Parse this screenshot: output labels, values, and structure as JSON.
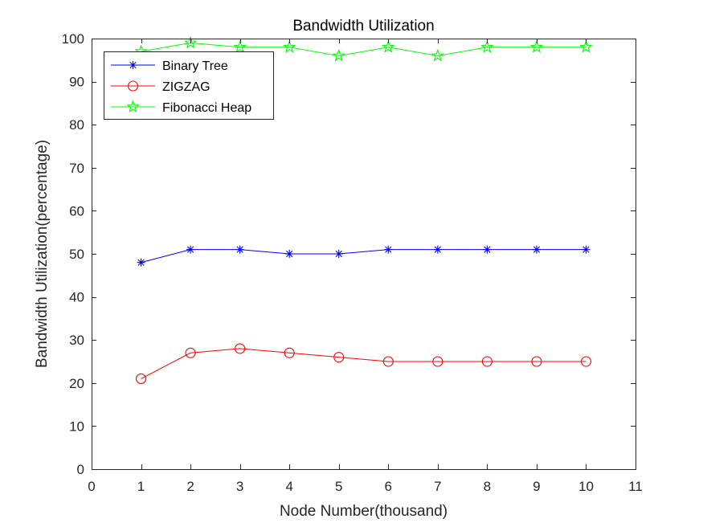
{
  "chart_data": {
    "type": "line",
    "title": "Bandwidth Utilization",
    "xlabel": "Node Number(thousand)",
    "ylabel": "Bandwidth Utilization(percentage)",
    "xlim": [
      0,
      11
    ],
    "ylim": [
      0,
      100
    ],
    "xticks": [
      0,
      1,
      2,
      3,
      4,
      5,
      6,
      7,
      8,
      9,
      10,
      11
    ],
    "yticks": [
      0,
      10,
      20,
      30,
      40,
      50,
      60,
      70,
      80,
      90,
      100
    ],
    "grid": false,
    "legend_position": "top-left",
    "x": [
      1,
      2,
      3,
      4,
      5,
      6,
      7,
      8,
      9,
      10
    ],
    "series": [
      {
        "name": "Binary Tree",
        "color": "#0000ff",
        "marker": "asterisk",
        "values": [
          48,
          51,
          51,
          50,
          50,
          51,
          51,
          51,
          51,
          51
        ]
      },
      {
        "name": "ZIGZAG",
        "color": "#ff0000",
        "marker": "circle",
        "values": [
          21,
          27,
          28,
          27,
          26,
          25,
          25,
          25,
          25,
          25
        ]
      },
      {
        "name": "Fibonacci Heap",
        "color": "#00ff00",
        "marker": "pentagram",
        "values": [
          97,
          99,
          98,
          98,
          96,
          98,
          96,
          98,
          98,
          98
        ]
      }
    ]
  }
}
